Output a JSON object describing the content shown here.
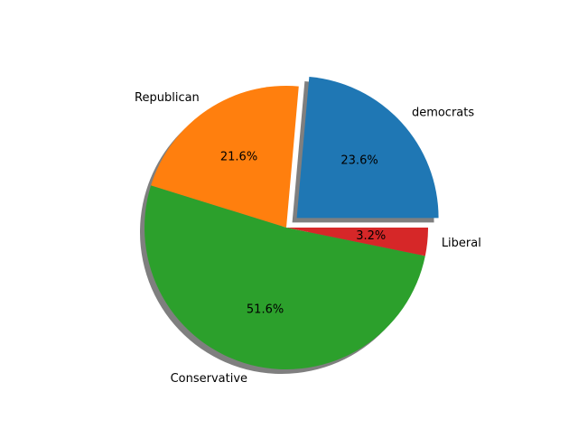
{
  "chart_data": {
    "type": "pie",
    "title": "",
    "categories": [
      "democrats",
      "Republican",
      "Conservative",
      "Liberal"
    ],
    "values": [
      23.6,
      21.6,
      51.6,
      3.2
    ],
    "percent_labels": [
      "23.6%",
      "21.6%",
      "51.6%",
      "3.2%"
    ],
    "colors": [
      "#1f77b4",
      "#ff7f0e",
      "#2ca02c",
      "#d62728"
    ],
    "exploded": [
      "democrats"
    ],
    "shadow": true,
    "start_angle_deg": 0,
    "direction": "counterclockwise",
    "legend": "none",
    "grid": false
  }
}
